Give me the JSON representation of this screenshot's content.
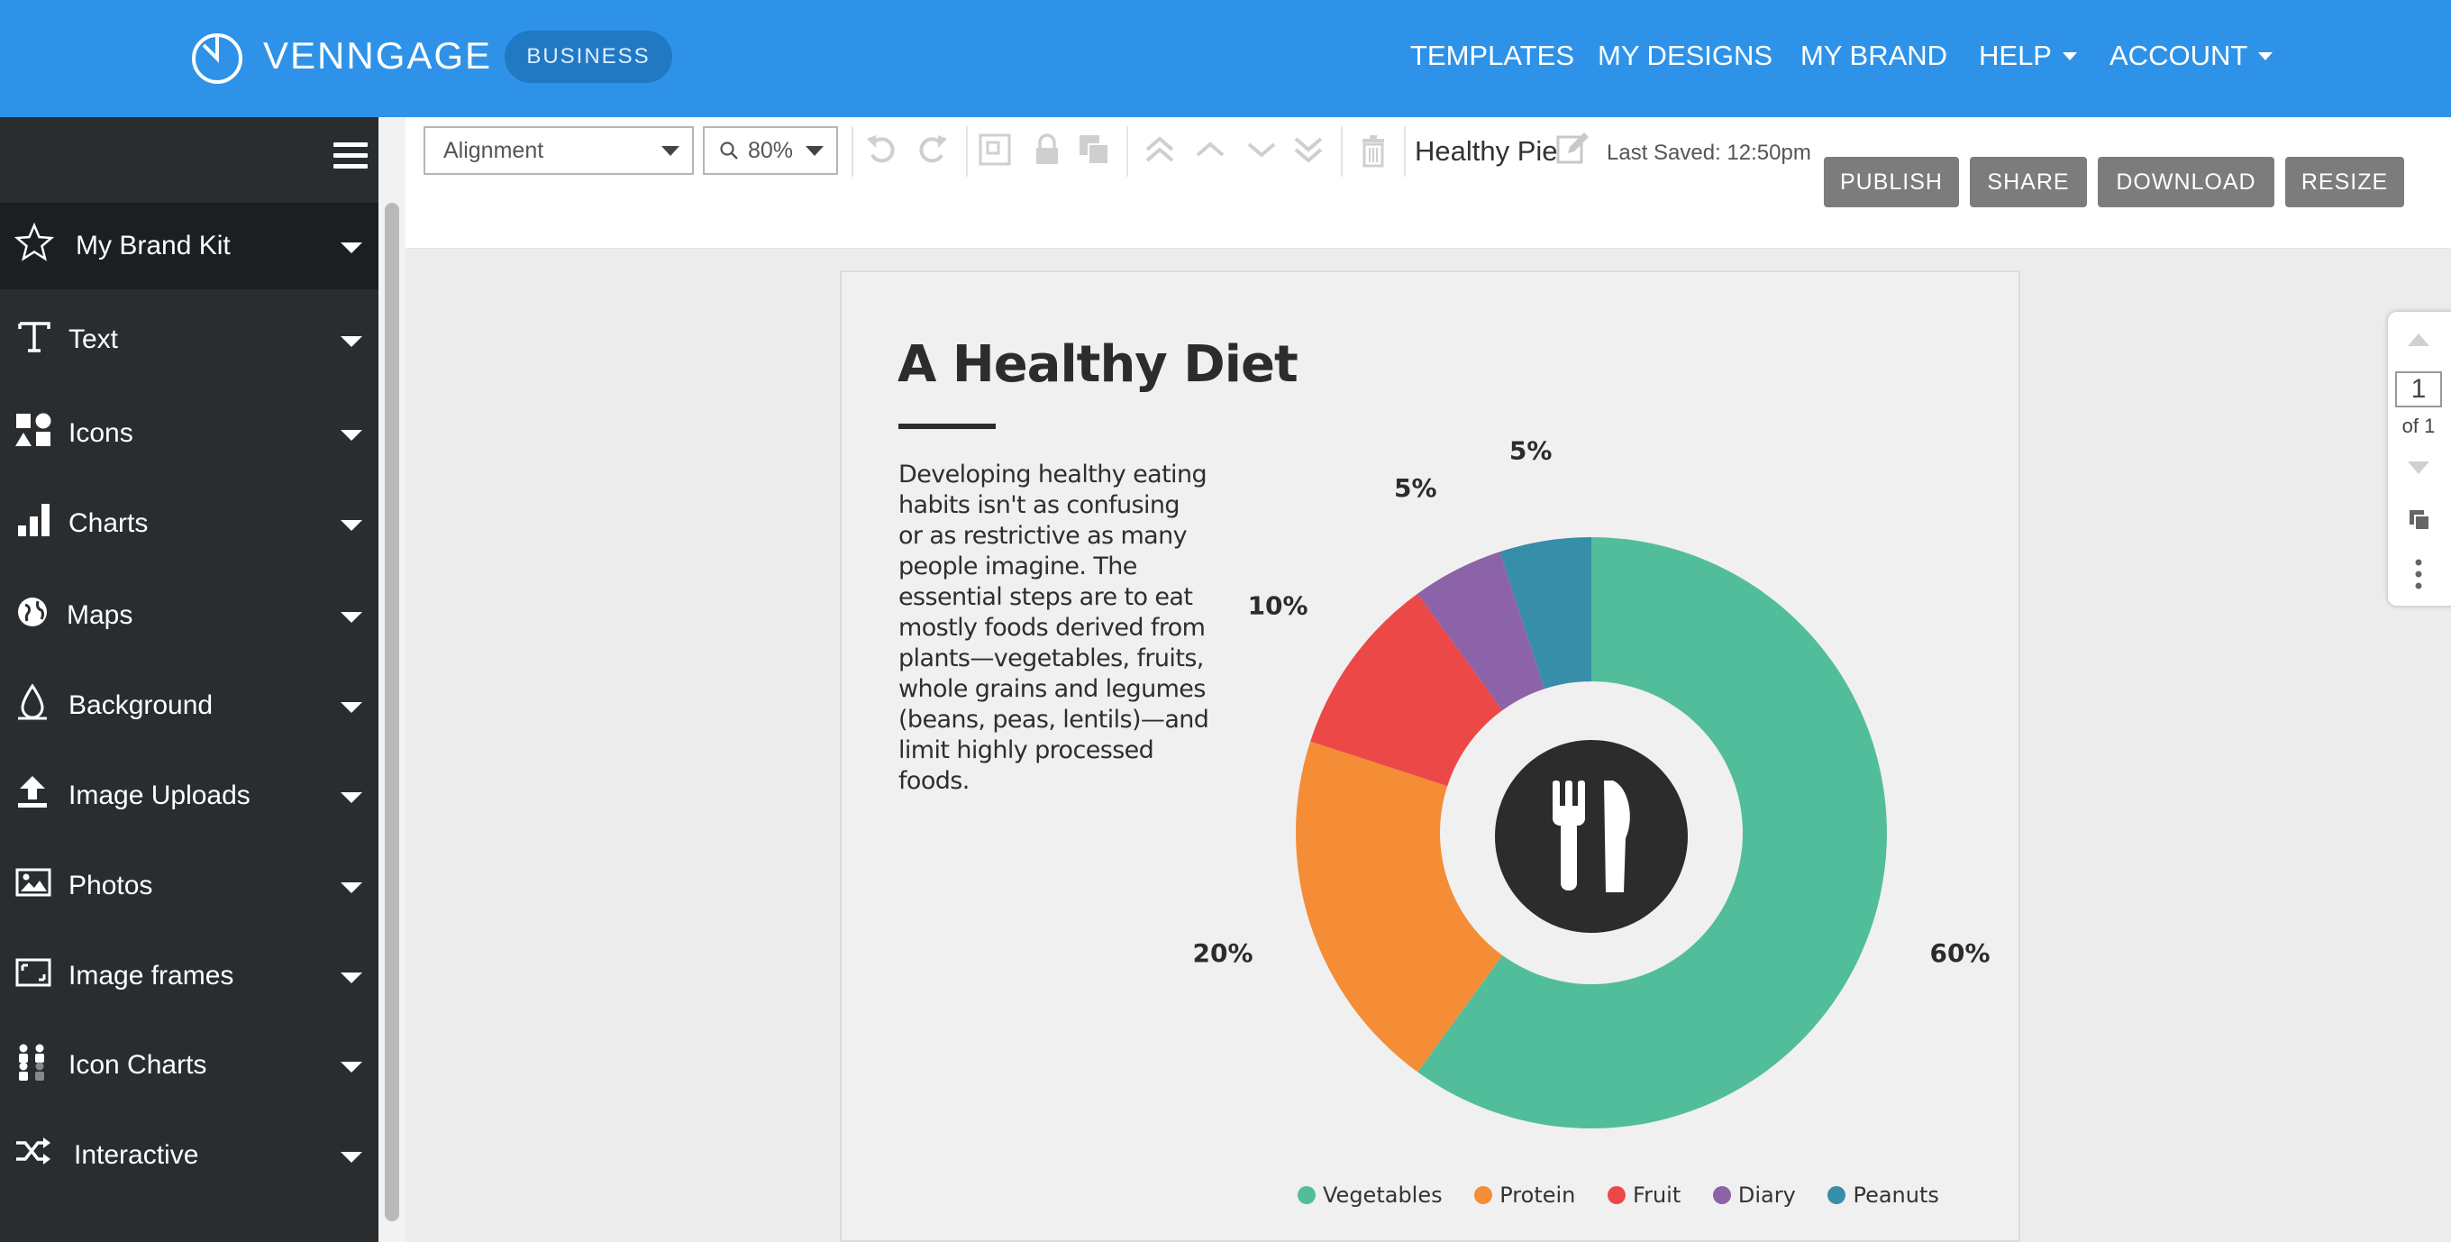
{
  "header": {
    "brand": "VENNGAGE",
    "plan_badge": "BUSINESS",
    "nav": [
      {
        "label": "TEMPLATES"
      },
      {
        "label": "MY DESIGNS"
      },
      {
        "label": "MY BRAND"
      },
      {
        "label": "HELP"
      },
      {
        "label": "ACCOUNT"
      }
    ]
  },
  "sidebar": {
    "items": [
      {
        "label": "My Brand Kit",
        "icon": "star-icon"
      },
      {
        "label": "Text",
        "icon": "text-icon"
      },
      {
        "label": "Icons",
        "icon": "shapes-icon"
      },
      {
        "label": "Charts",
        "icon": "bar-chart-icon"
      },
      {
        "label": "Maps",
        "icon": "globe-icon"
      },
      {
        "label": "Background",
        "icon": "drop-icon"
      },
      {
        "label": "Image Uploads",
        "icon": "upload-icon"
      },
      {
        "label": "Photos",
        "icon": "photo-icon"
      },
      {
        "label": "Image frames",
        "icon": "frame-icon"
      },
      {
        "label": "Icon Charts",
        "icon": "people-icon"
      },
      {
        "label": "Interactive",
        "icon": "shuffle-icon"
      }
    ]
  },
  "toolbar": {
    "alignment": "Alignment",
    "zoom": "80%",
    "document_name": "Healthy Pie",
    "last_saved": "Last Saved: 12:50pm",
    "buttons": {
      "publish": "PUBLISH",
      "share": "SHARE",
      "download": "DOWNLOAD",
      "resize": "RESIZE"
    }
  },
  "design": {
    "title": "A Healthy Diet",
    "body": "Developing healthy eating habits isn't as confusing or as restrictive as many people imagine. The essential steps are to eat mostly foods derived from plants—vegetables, fruits, whole grains and legumes (beans, peas, lentils)—and limit highly processed foods."
  },
  "chart_data": {
    "type": "pie",
    "categories": [
      "Vegetables",
      "Protein",
      "Fruit",
      "Diary",
      "Peanuts"
    ],
    "values": [
      60,
      20,
      10,
      5,
      5
    ],
    "labels": [
      "60%",
      "20%",
      "10%",
      "5%",
      "5%"
    ],
    "colors": [
      "#52bd9a",
      "#f58d36",
      "#ec4848",
      "#8c62a8",
      "#368ea8"
    ],
    "center_icon": "fork-knife-icon",
    "legend_position": "bottom"
  },
  "pager": {
    "current": "1",
    "total": "of 1"
  }
}
